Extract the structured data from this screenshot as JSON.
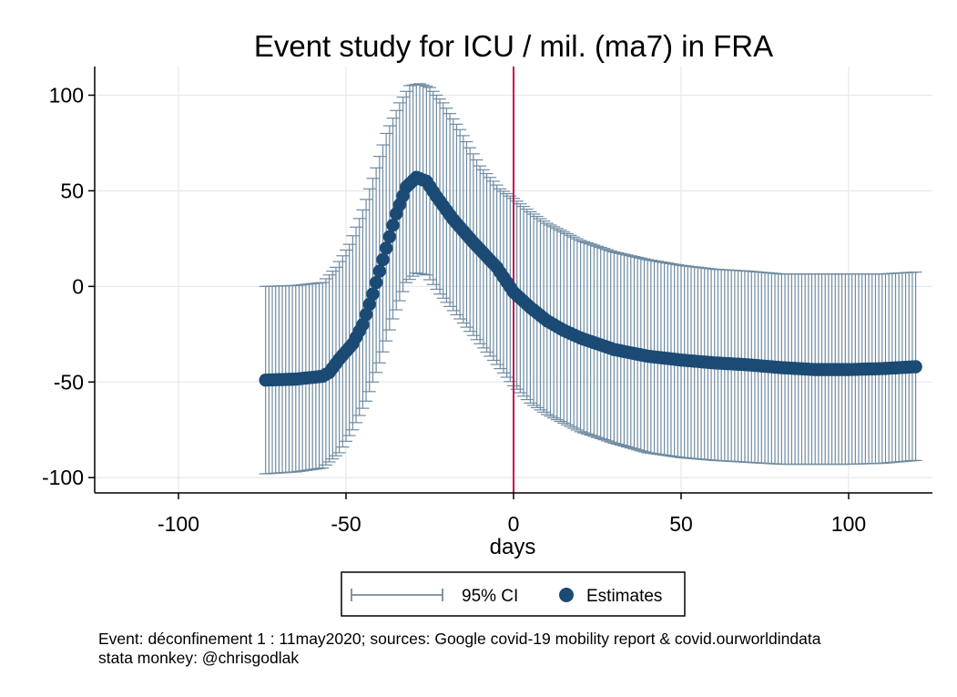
{
  "colors": {
    "ci": "#6f8ba1",
    "estimate": "#1b4a74",
    "event_line": "#c8104a",
    "grid": "#e8eaec",
    "axis": "#000000"
  },
  "chart_data": {
    "type": "scatter",
    "title": "Event study for ICU / mil. (ma7) in FRA",
    "xlabel": "days",
    "ylabel": "",
    "xlim": [
      -125,
      125
    ],
    "ylim": [
      -108,
      115
    ],
    "xticks": [
      -100,
      -50,
      0,
      50,
      100
    ],
    "yticks": [
      100,
      50,
      0,
      -50,
      -100
    ],
    "grid": true,
    "event_line_x": 0,
    "legend": {
      "position": "bottom",
      "items": [
        {
          "name": "95% CI",
          "kind": "capped-range"
        },
        {
          "name": "Estimates",
          "kind": "marker"
        }
      ]
    },
    "x_range": [
      -74,
      120
    ],
    "estimate_knots": [
      [
        -74,
        -49
      ],
      [
        -65,
        -48.5
      ],
      [
        -57,
        -47
      ],
      [
        -55,
        -45
      ],
      [
        -52,
        -38
      ],
      [
        -48,
        -30
      ],
      [
        -45,
        -20
      ],
      [
        -42,
        -4
      ],
      [
        -38,
        20
      ],
      [
        -35,
        38
      ],
      [
        -32,
        52
      ],
      [
        -29,
        57
      ],
      [
        -26,
        55
      ],
      [
        -23,
        47
      ],
      [
        -18,
        35
      ],
      [
        -12,
        23
      ],
      [
        -5,
        10
      ],
      [
        0,
        -3
      ],
      [
        5,
        -11
      ],
      [
        10,
        -18
      ],
      [
        15,
        -23
      ],
      [
        20,
        -27
      ],
      [
        30,
        -33
      ],
      [
        40,
        -36.5
      ],
      [
        50,
        -38.5
      ],
      [
        60,
        -40
      ],
      [
        70,
        -41
      ],
      [
        80,
        -42.5
      ],
      [
        90,
        -43.5
      ],
      [
        100,
        -43.5
      ],
      [
        110,
        -43
      ],
      [
        120,
        -42
      ]
    ],
    "ci_lower_knots": [
      [
        -74,
        -98
      ],
      [
        -65,
        -97
      ],
      [
        -57,
        -95
      ],
      [
        -52,
        -87
      ],
      [
        -48,
        -75
      ],
      [
        -44,
        -60
      ],
      [
        -40,
        -40
      ],
      [
        -36,
        -17
      ],
      [
        -32,
        2
      ],
      [
        -29,
        7
      ],
      [
        -26,
        6
      ],
      [
        -22,
        -4
      ],
      [
        -16,
        -17
      ],
      [
        -10,
        -30
      ],
      [
        -4,
        -43
      ],
      [
        0,
        -52
      ],
      [
        5,
        -61
      ],
      [
        10,
        -67
      ],
      [
        20,
        -76
      ],
      [
        30,
        -82
      ],
      [
        40,
        -87
      ],
      [
        50,
        -89.5
      ],
      [
        60,
        -91
      ],
      [
        70,
        -92
      ],
      [
        80,
        -93
      ],
      [
        90,
        -93
      ],
      [
        100,
        -93
      ],
      [
        110,
        -92.5
      ],
      [
        120,
        -91
      ]
    ],
    "ci_upper_knots": [
      [
        -74,
        0
      ],
      [
        -65,
        0.5
      ],
      [
        -57,
        2
      ],
      [
        -53,
        10
      ],
      [
        -49,
        22
      ],
      [
        -45,
        40
      ],
      [
        -41,
        62
      ],
      [
        -38,
        80
      ],
      [
        -34,
        96
      ],
      [
        -31,
        105
      ],
      [
        -28,
        106
      ],
      [
        -25,
        104
      ],
      [
        -21,
        96
      ],
      [
        -16,
        82
      ],
      [
        -10,
        63
      ],
      [
        -4,
        51
      ],
      [
        0,
        46
      ],
      [
        5,
        39
      ],
      [
        10,
        33
      ],
      [
        20,
        24
      ],
      [
        30,
        18
      ],
      [
        40,
        14
      ],
      [
        50,
        11
      ],
      [
        60,
        9
      ],
      [
        70,
        8
      ],
      [
        80,
        6.5
      ],
      [
        90,
        6.5
      ],
      [
        100,
        6.5
      ],
      [
        110,
        6.5
      ],
      [
        120,
        7.5
      ]
    ]
  },
  "footer": {
    "note1": "Event: déconfinement 1 : 11may2020; sources: Google covid-19 mobility report & covid.ourworldindata",
    "note2": "stata monkey: @chrisgodlak"
  }
}
